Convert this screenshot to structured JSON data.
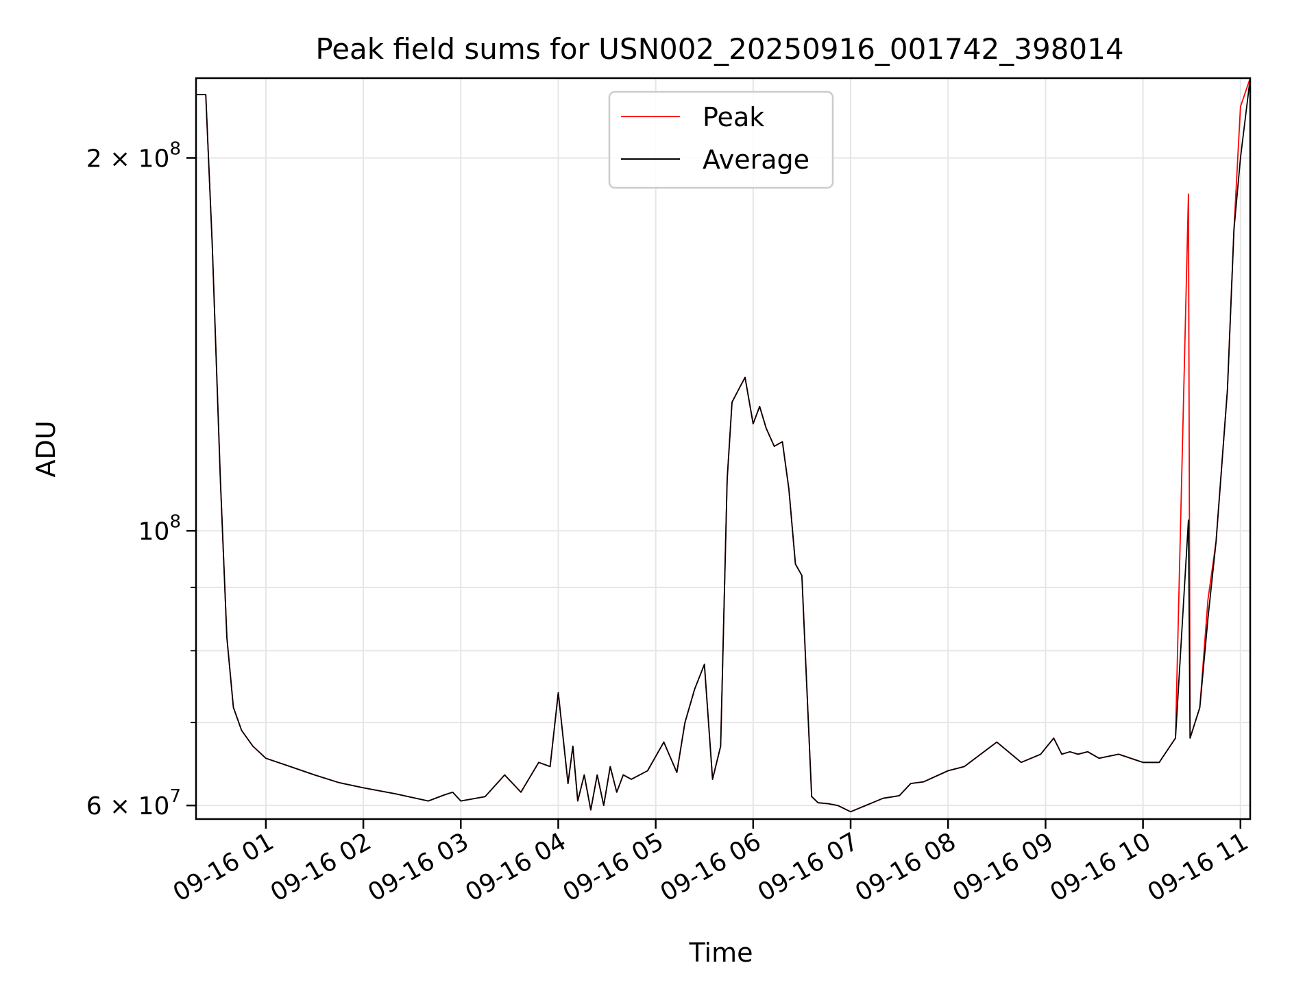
{
  "chart_data": {
    "type": "line",
    "title": "Peak field sums for USN002_20250916_001742_398014",
    "xlabel": "Time",
    "ylabel": "ADU",
    "y_scale": "log",
    "ylim": [
      58500000,
      232000000
    ],
    "xlim": [
      "2025-09-16 00:17",
      "2025-09-16 11:06"
    ],
    "x_ticks": [
      "2025-09-16 01:00",
      "2025-09-16 02:00",
      "2025-09-16 03:00",
      "2025-09-16 04:00",
      "2025-09-16 05:00",
      "2025-09-16 06:00",
      "2025-09-16 07:00",
      "2025-09-16 08:00",
      "2025-09-16 09:00",
      "2025-09-16 10:00",
      "2025-09-16 11:00"
    ],
    "x_tick_labels": [
      "09-16 01",
      "09-16 02",
      "09-16 03",
      "09-16 04",
      "09-16 05",
      "09-16 06",
      "09-16 07",
      "09-16 08",
      "09-16 09",
      "09-16 10",
      "09-16 11"
    ],
    "y_ticks": [
      60000000,
      100000000,
      200000000
    ],
    "y_tick_labels": [
      {
        "base": "6 × 10",
        "exp": "7"
      },
      {
        "base": "10",
        "exp": "8"
      },
      {
        "base": "2 × 10",
        "exp": "8"
      }
    ],
    "y_minor_ticks": [
      70000000,
      80000000,
      90000000
    ],
    "grid": true,
    "legend_position": "top-center",
    "legend": [
      "Peak",
      "Average"
    ],
    "colors": {
      "Peak": "#ff0000",
      "Average": "#000000"
    },
    "x": [
      "2025-09-16 00:17",
      "2025-09-16 00:23",
      "2025-09-16 00:27",
      "2025-09-16 00:32",
      "2025-09-16 00:36",
      "2025-09-16 00:40",
      "2025-09-16 00:45",
      "2025-09-16 00:52",
      "2025-09-16 01:00",
      "2025-09-16 01:15",
      "2025-09-16 01:30",
      "2025-09-16 01:45",
      "2025-09-16 02:00",
      "2025-09-16 02:20",
      "2025-09-16 02:40",
      "2025-09-16 02:50",
      "2025-09-16 02:55",
      "2025-09-16 03:00",
      "2025-09-16 03:15",
      "2025-09-16 03:27",
      "2025-09-16 03:37",
      "2025-09-16 03:48",
      "2025-09-16 03:55",
      "2025-09-16 04:00",
      "2025-09-16 04:02",
      "2025-09-16 04:06",
      "2025-09-16 04:09",
      "2025-09-16 04:12",
      "2025-09-16 04:16",
      "2025-09-16 04:20",
      "2025-09-16 04:24",
      "2025-09-16 04:28",
      "2025-09-16 04:32",
      "2025-09-16 04:36",
      "2025-09-16 04:40",
      "2025-09-16 04:45",
      "2025-09-16 04:55",
      "2025-09-16 05:05",
      "2025-09-16 05:13",
      "2025-09-16 05:18",
      "2025-09-16 05:24",
      "2025-09-16 05:30",
      "2025-09-16 05:35",
      "2025-09-16 05:40",
      "2025-09-16 05:44",
      "2025-09-16 05:47",
      "2025-09-16 05:51",
      "2025-09-16 05:55",
      "2025-09-16 06:00",
      "2025-09-16 06:04",
      "2025-09-16 06:08",
      "2025-09-16 06:13",
      "2025-09-16 06:18",
      "2025-09-16 06:22",
      "2025-09-16 06:26",
      "2025-09-16 06:30",
      "2025-09-16 06:33",
      "2025-09-16 06:36",
      "2025-09-16 06:40",
      "2025-09-16 06:46",
      "2025-09-16 06:52",
      "2025-09-16 07:00",
      "2025-09-16 07:20",
      "2025-09-16 07:30",
      "2025-09-16 07:37",
      "2025-09-16 07:45",
      "2025-09-16 08:00",
      "2025-09-16 08:10",
      "2025-09-16 08:30",
      "2025-09-16 08:45",
      "2025-09-16 08:57",
      "2025-09-16 09:05",
      "2025-09-16 09:10",
      "2025-09-16 09:15",
      "2025-09-16 09:20",
      "2025-09-16 09:26",
      "2025-09-16 09:33",
      "2025-09-16 09:45",
      "2025-09-16 10:00",
      "2025-09-16 10:10",
      "2025-09-16 10:20",
      "2025-09-16 10:28",
      "2025-09-16 10:29",
      "2025-09-16 10:35",
      "2025-09-16 10:40",
      "2025-09-16 10:45",
      "2025-09-16 10:52",
      "2025-09-16 10:56",
      "2025-09-16 11:00",
      "2025-09-16 11:06"
    ],
    "series": [
      {
        "name": "Average",
        "values": [
          225000000,
          225000000,
          170000000,
          110000000,
          82000000,
          72000000,
          69000000,
          67000000,
          65500000,
          64500000,
          63500000,
          62600000,
          62000000,
          61300000,
          60500000,
          61200000,
          61500000,
          60500000,
          61000000,
          63500000,
          61500000,
          65000000,
          64500000,
          74000000,
          70000000,
          62500000,
          67000000,
          60500000,
          63500000,
          59500000,
          63500000,
          60000000,
          64500000,
          61500000,
          63500000,
          63000000,
          64000000,
          67500000,
          63800000,
          70000000,
          74500000,
          78000000,
          63000000,
          67000000,
          110000000,
          127000000,
          130000000,
          133000000,
          122000000,
          126000000,
          121000000,
          117000000,
          118000000,
          108000000,
          94000000,
          92000000,
          75000000,
          61000000,
          60300000,
          60200000,
          60000000,
          59300000,
          60800000,
          61100000,
          62500000,
          62700000,
          64000000,
          64500000,
          67500000,
          65000000,
          66000000,
          68000000,
          66000000,
          66300000,
          66000000,
          66300000,
          65500000,
          66000000,
          65000000,
          65000000,
          68000000,
          102000000,
          68000000,
          72000000,
          85000000,
          98000000,
          130000000,
          175000000,
          200000000,
          232000000
        ]
      },
      {
        "name": "Peak",
        "values": [
          225000000,
          225000000,
          170000000,
          110000000,
          82000000,
          72000000,
          69000000,
          67000000,
          65500000,
          64500000,
          63500000,
          62600000,
          62000000,
          61300000,
          60500000,
          61200000,
          61500000,
          60500000,
          61000000,
          63500000,
          61500000,
          65000000,
          64500000,
          74000000,
          70000000,
          62500000,
          67000000,
          60500000,
          63500000,
          59500000,
          63500000,
          60000000,
          64500000,
          61500000,
          63500000,
          63000000,
          64000000,
          67500000,
          63800000,
          70000000,
          74500000,
          78000000,
          63000000,
          67000000,
          110000000,
          127000000,
          130000000,
          133000000,
          122000000,
          126000000,
          121000000,
          117000000,
          118000000,
          108000000,
          94000000,
          92000000,
          75000000,
          61000000,
          60300000,
          60200000,
          60000000,
          59300000,
          60800000,
          61100000,
          62500000,
          62700000,
          64000000,
          64500000,
          67500000,
          65000000,
          66000000,
          68000000,
          66000000,
          66300000,
          66000000,
          66300000,
          65500000,
          66000000,
          65000000,
          65000000,
          68000000,
          187000000,
          68000000,
          72000000,
          88000000,
          98000000,
          130000000,
          175000000,
          220000000,
          232000000
        ]
      }
    ]
  }
}
